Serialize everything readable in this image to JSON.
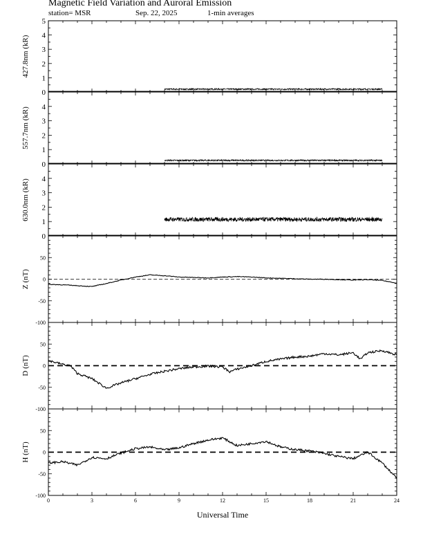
{
  "header": {
    "title": "Magnetic Field Variation and Auroral Emission",
    "station": "station= MSR",
    "date": "Sep. 22, 2025",
    "averaging": "1-min averages"
  },
  "chart_data": [
    {
      "type": "line",
      "ylabel": "427.8nm (kR)",
      "ylim": [
        0,
        5
      ],
      "yticks": [
        0,
        1,
        2,
        3,
        4,
        5
      ],
      "xlim": [
        0,
        24
      ],
      "data_range": [
        8,
        23
      ],
      "level": 0.2,
      "noise": 0.05
    },
    {
      "type": "line",
      "ylabel": "557.7nm (kR)",
      "ylim": [
        0,
        5
      ],
      "yticks": [
        0,
        1,
        2,
        3,
        4
      ],
      "xlim": [
        0,
        24
      ],
      "data_range": [
        8,
        23
      ],
      "level": 0.25,
      "noise": 0.05
    },
    {
      "type": "line",
      "ylabel": "630.0nm (kR)",
      "ylim": [
        0,
        5
      ],
      "yticks": [
        0,
        1,
        2,
        3,
        4
      ],
      "xlim": [
        0,
        24
      ],
      "data_range": [
        8,
        23
      ],
      "level": 1.15,
      "noise": 0.15
    },
    {
      "type": "line",
      "ylabel": "Z (nT)",
      "ylim": [
        -100,
        100
      ],
      "yticks": [
        -100,
        -50,
        0,
        50
      ],
      "xlim": [
        0,
        24
      ],
      "baseline": "dashed-fine",
      "x": [
        0,
        1,
        2,
        3,
        4,
        5,
        6,
        7,
        8,
        9,
        10,
        11,
        12,
        13,
        14,
        15,
        16,
        17,
        18,
        19,
        20,
        21,
        22,
        23,
        24
      ],
      "y": [
        -12,
        -13,
        -15,
        -17,
        -10,
        -2,
        5,
        10,
        8,
        5,
        4,
        3,
        5,
        6,
        5,
        3,
        2,
        1,
        0,
        0,
        -1,
        -2,
        -1,
        -3,
        -9
      ]
    },
    {
      "type": "line",
      "ylabel": "D (nT)",
      "ylim": [
        -100,
        100
      ],
      "yticks": [
        -100,
        -50,
        0,
        50
      ],
      "xlim": [
        0,
        24
      ],
      "baseline": "dashed-bold",
      "x": [
        0,
        1,
        1.5,
        2,
        3,
        4,
        5,
        6,
        7,
        8,
        9,
        10,
        11,
        12,
        12.5,
        13,
        14,
        15,
        16,
        17,
        18,
        19,
        20,
        21,
        21.5,
        22,
        23,
        24
      ],
      "y": [
        12,
        3,
        0,
        -18,
        -30,
        -52,
        -40,
        -30,
        -20,
        -13,
        -7,
        -3,
        -1,
        -3,
        -14,
        -8,
        0,
        10,
        15,
        20,
        22,
        28,
        25,
        30,
        15,
        30,
        35,
        25
      ]
    },
    {
      "type": "line",
      "ylabel": "H (nT)",
      "ylim": [
        -100,
        100
      ],
      "yticks": [
        -100,
        -50,
        0,
        50
      ],
      "xlim": [
        0,
        24
      ],
      "xlabel": "Universal Time",
      "xticks": [
        0,
        3,
        6,
        9,
        12,
        15,
        18,
        21,
        24
      ],
      "baseline": "dashed-bold",
      "x": [
        0,
        1,
        2,
        3,
        4,
        5,
        6,
        7,
        8,
        9,
        10,
        11,
        12,
        13,
        14,
        15,
        16,
        17,
        18,
        19,
        20,
        21,
        22,
        23,
        24
      ],
      "y": [
        -25,
        -22,
        -30,
        -12,
        -15,
        -2,
        8,
        12,
        5,
        10,
        20,
        28,
        33,
        15,
        20,
        25,
        12,
        6,
        3,
        -3,
        -10,
        -15,
        0,
        -25,
        -60
      ]
    }
  ]
}
